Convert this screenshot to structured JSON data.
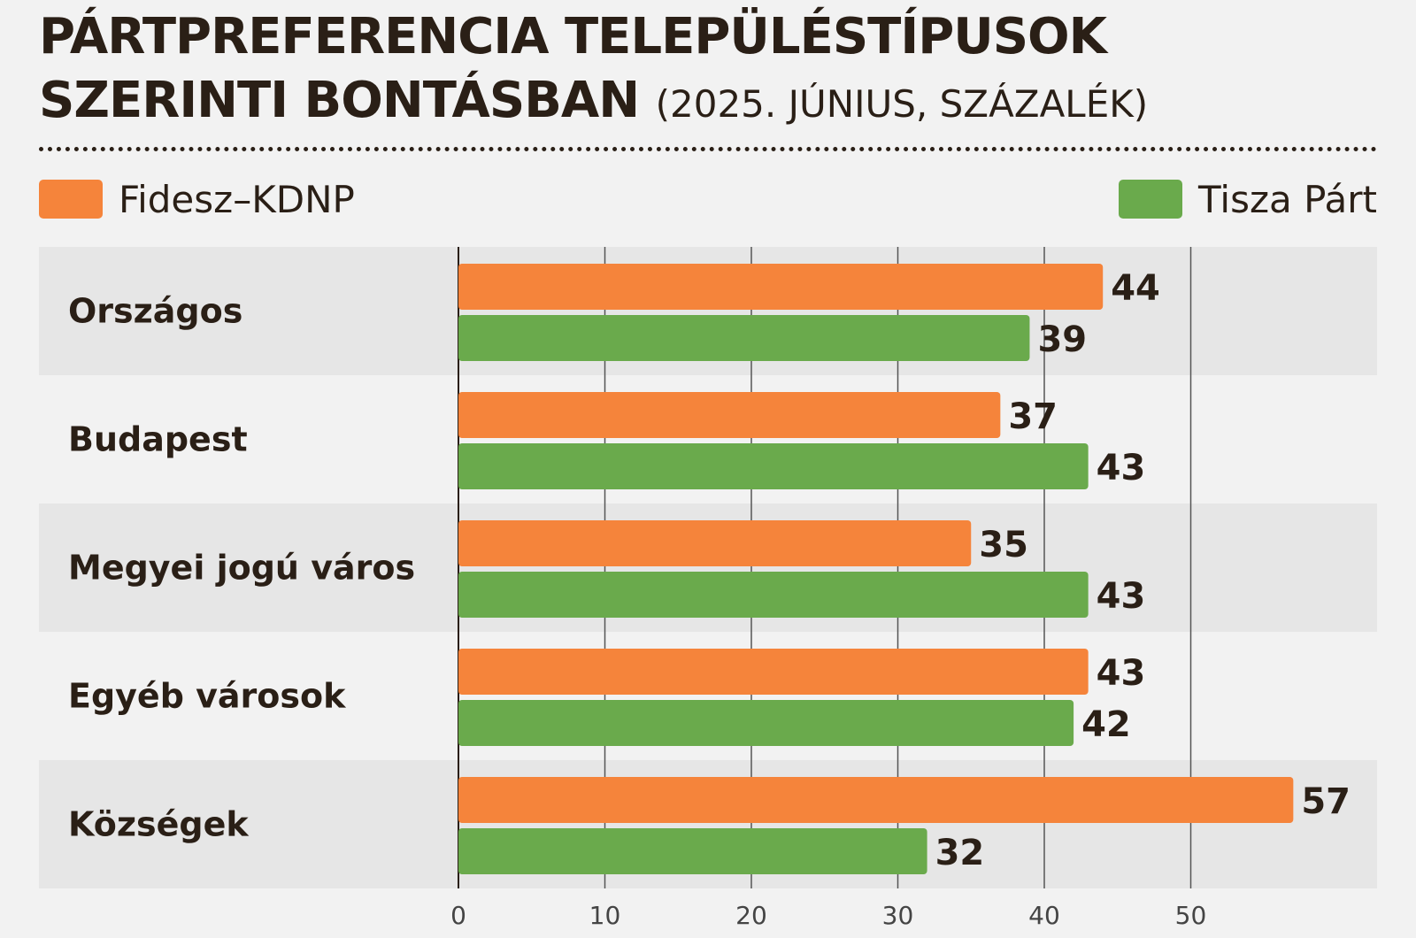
{
  "header": {
    "title_line1": "PÁRTPREFERENCIA TELEPÜLÉSTÍPUSOK",
    "title_line2": "SZERINTI BONTÁSBAN",
    "subtitle": "(2025. JÚNIUS, SZÁZALÉK)"
  },
  "legend": {
    "fidesz_label": "Fidesz–KDNP",
    "tisza_label": "Tisza Párt"
  },
  "colors": {
    "fidesz": "#f5843b",
    "tisza": "#6aaa4c",
    "band": "#e6e6e6",
    "grid": "#555555",
    "text": "#2a1f16"
  },
  "chart_data": {
    "type": "bar",
    "orientation": "horizontal",
    "title": "PÁRTPREFERENCIA TELEPÜLÉSTÍPUSOK SZERINTI BONTÁSBAN",
    "subtitle": "(2025. JÚNIUS, SZÁZALÉK)",
    "categories": [
      "Országos",
      "Budapest",
      "Megyei jogú város",
      "Egyéb városok",
      "Községek"
    ],
    "series": [
      {
        "name": "Fidesz–KDNP",
        "values": [
          44,
          37,
          35,
          43,
          57
        ]
      },
      {
        "name": "Tisza Párt",
        "values": [
          39,
          43,
          43,
          42,
          32
        ]
      }
    ],
    "xlim": [
      0,
      60
    ],
    "xticks": [
      0,
      10,
      20,
      30,
      40,
      50
    ],
    "grid": true,
    "legend_position": "top"
  }
}
